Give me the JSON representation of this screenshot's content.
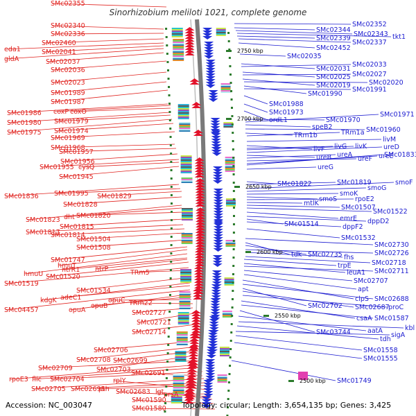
{
  "title": "Sinorhizobium meliloti 1021, complete genome",
  "accession": "Accession: NC_003047",
  "summary": "Topology: circular; Length: 3,654,135 bp; Genes: 3,425",
  "colors": {
    "left_labels": "#e0201c",
    "right_labels": "#1a1ad0",
    "backbone": "#808080",
    "tick": "#2a7a2a"
  },
  "kbp_markers": [
    "2750 kbp",
    "2700 kbp",
    "2650 kbp",
    "2600 kbp",
    "2550 kbp",
    "2500 kbp"
  ],
  "left_labels": [
    "SMc02355",
    "SMc02340",
    "SMc02336",
    "SMc02460",
    "eda1",
    "SMc02041",
    "gldA",
    "SMc02037",
    "SMc02036",
    "SMc02023",
    "SMc01989",
    "SMc01987",
    "SMc01986",
    "coxP",
    "coxO",
    "SMc01980",
    "SMc01979",
    "SMc01975",
    "SMc01974",
    "SMc01969",
    "SMc01968",
    "SMc01957",
    "SMc01956",
    "SMc01955",
    "cysQ",
    "SMc01945",
    "SMc01836",
    "SMc01995",
    "SMc01829",
    "SMc01828",
    "SMc01823",
    "dht",
    "SMc01820",
    "SMc01815",
    "SMc01817",
    "SMc01814",
    "SMc01504",
    "SMc01508",
    "SMc01747",
    "hmuT",
    "hmuU",
    "ntrR1",
    "ntrP",
    "SMc01520",
    "SMc01519",
    "TRm5",
    "SMc01534",
    "kdgK",
    "adeC1",
    "SMc04457",
    "opuA",
    "opuB",
    "opuC",
    "TRm22",
    "SMc02727",
    "SMc02721",
    "SMc02714",
    "SMc02706",
    "SMc02708",
    "SMc02699",
    "SMc02703",
    "SMc02709",
    "rpoE3",
    "flic",
    "SMc02704",
    "SMc02691",
    "SMc02705",
    "SMc02695",
    "pth",
    "rplY",
    "prsA",
    "SMc02683",
    "lgt",
    "SMc01590",
    "SMc01580"
  ],
  "right_labels": [
    "SMc02352",
    "SMc02344",
    "SMc02343",
    "tkt1",
    "SMc02339",
    "SMc02337",
    "SMc02452",
    "SMc02035",
    "SMc02031",
    "SMc02033",
    "SMc02025",
    "SMc02027",
    "SMc02019",
    "SMc02020",
    "SMc01990",
    "SMc01991",
    "SMc01988",
    "SMc01973",
    "ordL1",
    "SMc01970",
    "SMc01971",
    "speB2",
    "SMc01960",
    "TRm1b",
    "TRm1a",
    "livM",
    "livF",
    "livG",
    "livK",
    "ureD",
    "ureB",
    "ureA",
    "ureF",
    "ureE",
    "SMc01833",
    "ureG",
    "SMc01822",
    "SMc01819",
    "smoF",
    "smoG",
    "smoK",
    "smoS",
    "rpoE2",
    "mtlK",
    "SMc01507",
    "SMc01522",
    "emrE",
    "dppD2",
    "SMc01514",
    "dppF2",
    "SMc01532",
    "SMc02730",
    "tdk",
    "SMc02735",
    "SMc02726",
    "fhs",
    "SMc02718",
    "trpE",
    "leuA1",
    "SMc02711",
    "SMc02707",
    "apt",
    "clpS",
    "SMc02688",
    "SMc02702",
    "SMc02687",
    "proC",
    "csaA",
    "SMc01587",
    "SMc03744",
    "aatA",
    "kbl",
    "tdh",
    "sigA",
    "SMc01558",
    "SMc01555",
    "SMc01749"
  ]
}
